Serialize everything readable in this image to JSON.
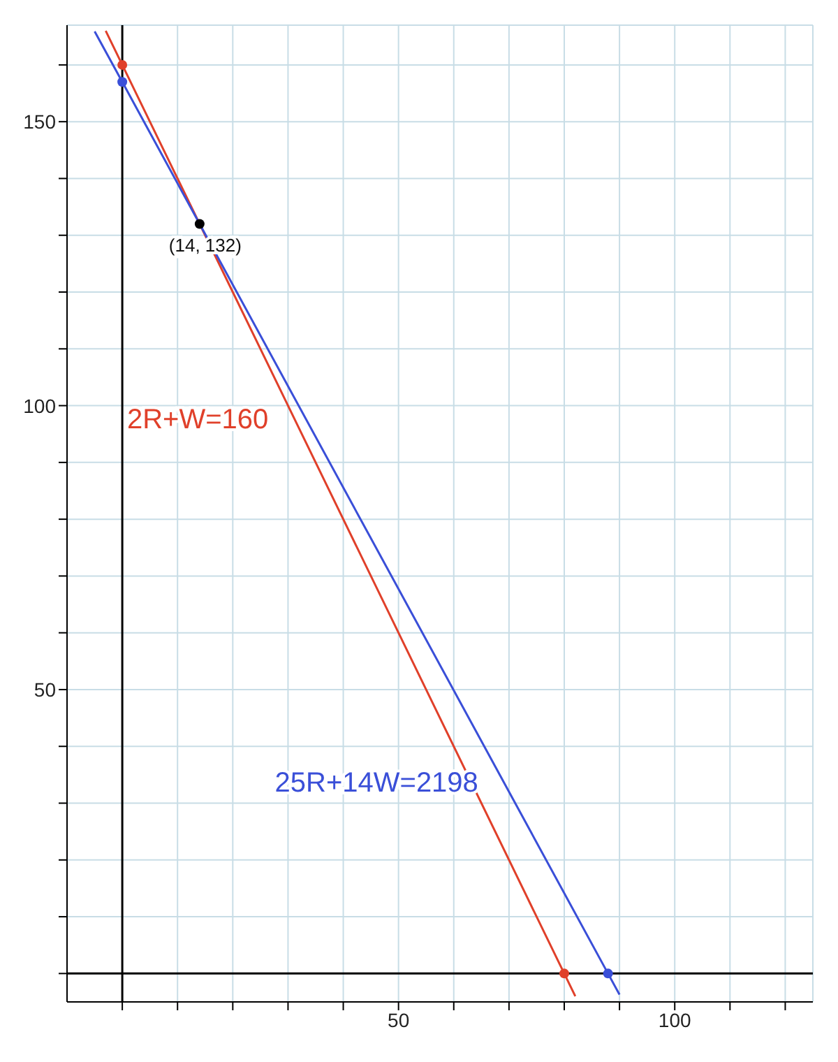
{
  "chart_data": {
    "type": "line",
    "xlim": [
      -10,
      125
    ],
    "ylim": [
      -5,
      167
    ],
    "xticks": [
      {
        "value": 0,
        "label": null
      },
      {
        "value": 10,
        "label": null
      },
      {
        "value": 20,
        "label": null
      },
      {
        "value": 30,
        "label": null
      },
      {
        "value": 40,
        "label": null
      },
      50,
      {
        "value": 60,
        "label": null
      },
      {
        "value": 70,
        "label": null
      },
      {
        "value": 80,
        "label": null
      },
      {
        "value": 90,
        "label": null
      },
      100,
      {
        "value": 110,
        "label": null
      },
      {
        "value": 120,
        "label": null
      }
    ],
    "yticks": [
      {
        "value": 0,
        "label": null
      },
      {
        "value": 10,
        "label": null
      },
      {
        "value": 20,
        "label": null
      },
      {
        "value": 30,
        "label": null
      },
      {
        "value": 40,
        "label": null
      },
      50,
      {
        "value": 60,
        "label": null
      },
      {
        "value": 70,
        "label": null
      },
      {
        "value": 80,
        "label": null
      },
      {
        "value": 90,
        "label": null
      },
      100,
      {
        "value": 110,
        "label": null
      },
      {
        "value": 120,
        "label": null
      },
      {
        "value": 130,
        "label": null
      },
      {
        "value": 140,
        "label": null
      },
      150,
      {
        "value": 160,
        "label": null
      }
    ],
    "grid": true,
    "legend": false,
    "line_style": "solid",
    "series": [
      {
        "name": "2R+W=160",
        "color": "#e0402a",
        "x": [
          -3,
          0,
          14,
          32,
          80,
          82
        ],
        "values": [
          166,
          160,
          132,
          96,
          0,
          -4
        ]
      },
      {
        "name": "25R+14W=2198",
        "color": "#3a4fd8",
        "x": [
          -5,
          0,
          14,
          70,
          87.92,
          90
        ],
        "values": [
          165.9,
          157,
          132,
          32,
          0,
          -3.7
        ]
      },
      {
        "type": "scatter",
        "color": "#e0402a",
        "x": [
          0,
          80
        ],
        "values": [
          160,
          0
        ]
      },
      {
        "type": "scatter",
        "color": "#3a4fd8",
        "x": [
          0,
          87.92
        ],
        "values": [
          157,
          0
        ]
      },
      {
        "type": "scatter",
        "color": "#000000",
        "x": [
          14
        ],
        "values": [
          132
        ]
      }
    ],
    "annotations": [
      {
        "text": "(14, 132)",
        "x": 14,
        "y": 132
      }
    ]
  }
}
